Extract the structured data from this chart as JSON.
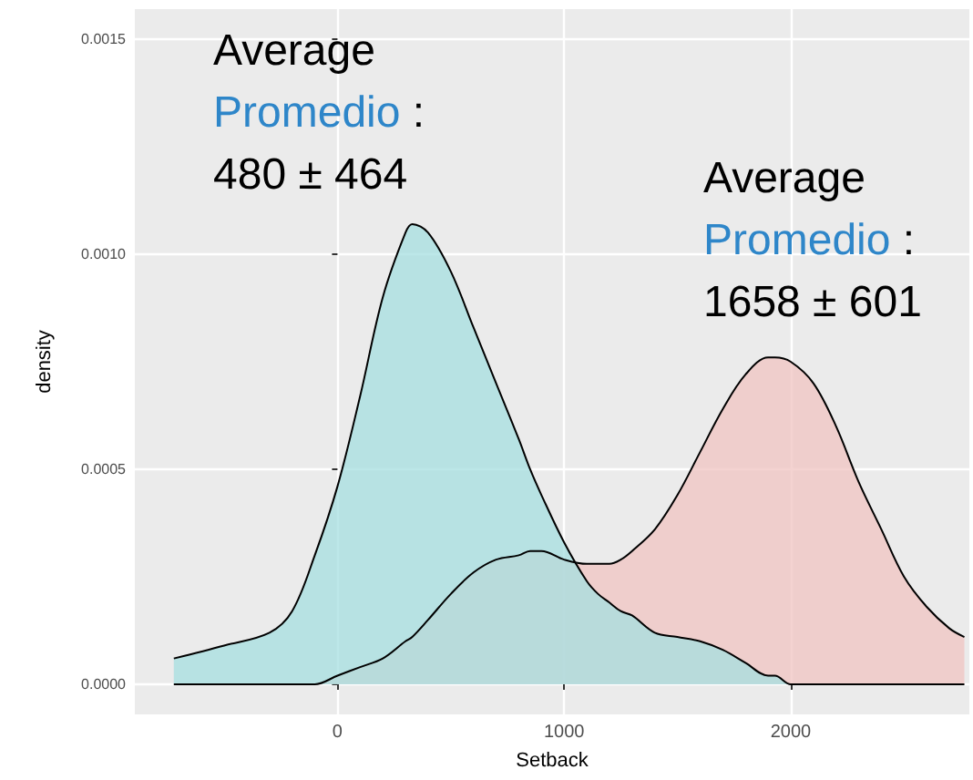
{
  "chart_data": {
    "type": "area",
    "xlabel": "Setback",
    "ylabel": "density",
    "x": [
      -722,
      -500,
      -300,
      -200,
      -100,
      0,
      100,
      200,
      300,
      330,
      400,
      500,
      600,
      700,
      800,
      850,
      900,
      1000,
      1100,
      1150,
      1200,
      1250,
      1300,
      1400,
      1500,
      1600,
      1700,
      1800,
      1900,
      1930,
      2000,
      2100,
      2200,
      2300,
      2400,
      2500,
      2600,
      2700,
      2766
    ],
    "series": [
      {
        "color": "#f0c4c2",
        "values": [
          0,
          0,
          0,
          0,
          0,
          2e-05,
          4e-05,
          6e-05,
          0.0001,
          0.00011,
          0.00015,
          0.00021,
          0.00026,
          0.00029,
          0.0003,
          0.00031,
          0.00031,
          0.00029,
          0.00028,
          0.00028,
          0.00028,
          0.00029,
          0.00031,
          0.00036,
          0.00044,
          0.00054,
          0.00064,
          0.00072,
          0.00076,
          0.00076,
          0.00075,
          0.0007,
          0.0006,
          0.00047,
          0.00036,
          0.00025,
          0.00018,
          0.00013,
          0.00011
        ]
      },
      {
        "color": "#a6dfe0",
        "values": [
          6e-05,
          9e-05,
          0.00012,
          0.00017,
          0.0003,
          0.00046,
          0.00067,
          0.0009,
          0.00105,
          0.00107,
          0.00105,
          0.00096,
          0.00083,
          0.0007,
          0.00057,
          0.0005,
          0.00044,
          0.00033,
          0.00024,
          0.00021,
          0.00019,
          0.00017,
          0.00016,
          0.00012,
          0.00011,
          0.0001,
          8e-05,
          5e-05,
          2e-05,
          2e-05,
          0,
          0,
          0,
          0,
          0,
          0,
          0,
          0,
          0
        ]
      }
    ],
    "xlim": [
      -894,
      2788
    ],
    "xticks": [
      0,
      1000,
      2000
    ],
    "ylim": [
      -7e-05,
      0.00157
    ],
    "yticks": [
      {
        "value": 0,
        "label": "0.0000"
      },
      {
        "value": 0.0005,
        "label": "0.0005"
      },
      {
        "value": 0.001,
        "label": "0.0010"
      },
      {
        "value": 0.0015,
        "label": "0.0015"
      }
    ],
    "grid": true,
    "marker": "none",
    "line_style": "solid",
    "annotations": [
      "Average\nPromedio :\n480 ± 464",
      "Average\nPromedio :\n1658 ± 601"
    ]
  }
}
